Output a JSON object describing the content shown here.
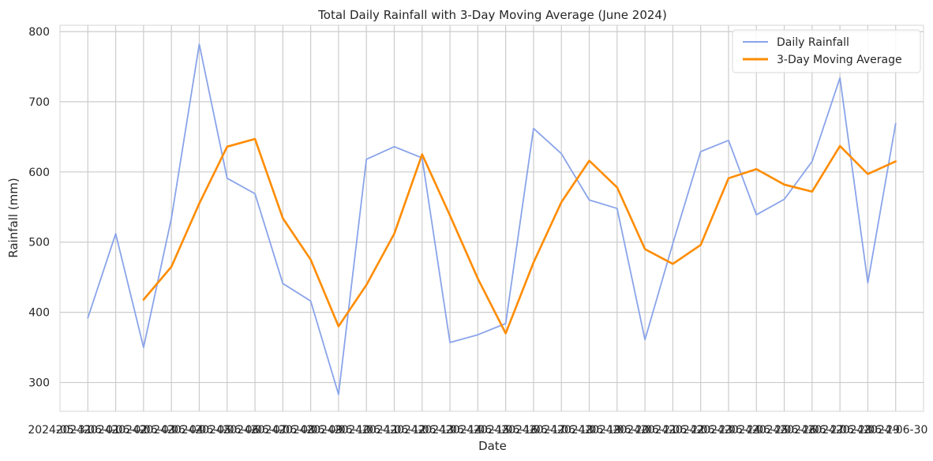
{
  "chart_data": {
    "type": "line",
    "title": "Total Daily Rainfall with 3-Day Moving Average (June 2024)",
    "xlabel": "Date",
    "ylabel": "Rainfall (mm)",
    "x": [
      "2024-06-01",
      "2024-06-02",
      "2024-06-03",
      "2024-06-04",
      "2024-06-05",
      "2024-06-06",
      "2024-06-07",
      "2024-06-08",
      "2024-06-09",
      "2024-06-10",
      "2024-06-11",
      "2024-06-12",
      "2024-06-13",
      "2024-06-14",
      "2024-06-15",
      "2024-06-16",
      "2024-06-17",
      "2024-06-18",
      "2024-06-19",
      "2024-06-20",
      "2024-06-21",
      "2024-06-22",
      "2024-06-23",
      "2024-06-24",
      "2024-06-25",
      "2024-06-26",
      "2024-06-27",
      "2024-06-28",
      "2024-06-29",
      "2024-06-30"
    ],
    "series": [
      {
        "name": "Daily Rainfall",
        "color": "#8aa4ea",
        "values": [
          392,
          512,
          350,
          534,
          782,
          591,
          569,
          441,
          416,
          283,
          618,
          636,
          620,
          357,
          368,
          384,
          662,
          626,
          560,
          548,
          361,
          498,
          629,
          645,
          539,
          561,
          615,
          734,
          442,
          669
        ]
      },
      {
        "name": "3-Day Moving Average",
        "color": "#ff8c00",
        "values": [
          null,
          null,
          418,
          465,
          555,
          636,
          647,
          534,
          475,
          380,
          439,
          512,
          625,
          538,
          448,
          370,
          471,
          557,
          616,
          578,
          490,
          469,
          496,
          591,
          604,
          582,
          572,
          637,
          597,
          615
        ]
      }
    ],
    "ylim": [
      259,
      809
    ],
    "xlim": [
      "2024-05-31",
      "2024-07-01"
    ],
    "yticks": [
      300,
      400,
      500,
      600,
      700,
      800
    ],
    "xtick_labels": [
      "2024-05-31",
      "2024-06-01",
      "2024-06-02",
      "2024-06-03",
      "2024-06-04",
      "2024-06-05",
      "2024-06-06",
      "2024-06-07",
      "2024-06-08",
      "2024-06-09",
      "2024-06-10",
      "2024-06-11",
      "2024-06-12",
      "2024-06-13",
      "2024-06-14",
      "2024-06-15",
      "2024-06-16",
      "2024-06-17",
      "2024-06-18",
      "2024-06-19",
      "2024-06-20",
      "2024-06-21",
      "2024-06-22",
      "2024-06-23",
      "2024-06-24",
      "2024-06-25",
      "2024-06-26",
      "2024-06-27",
      "2024-06-28",
      "2024-06-29",
      "2024-06-30"
    ],
    "grid": true,
    "legend_position": "top-right"
  }
}
